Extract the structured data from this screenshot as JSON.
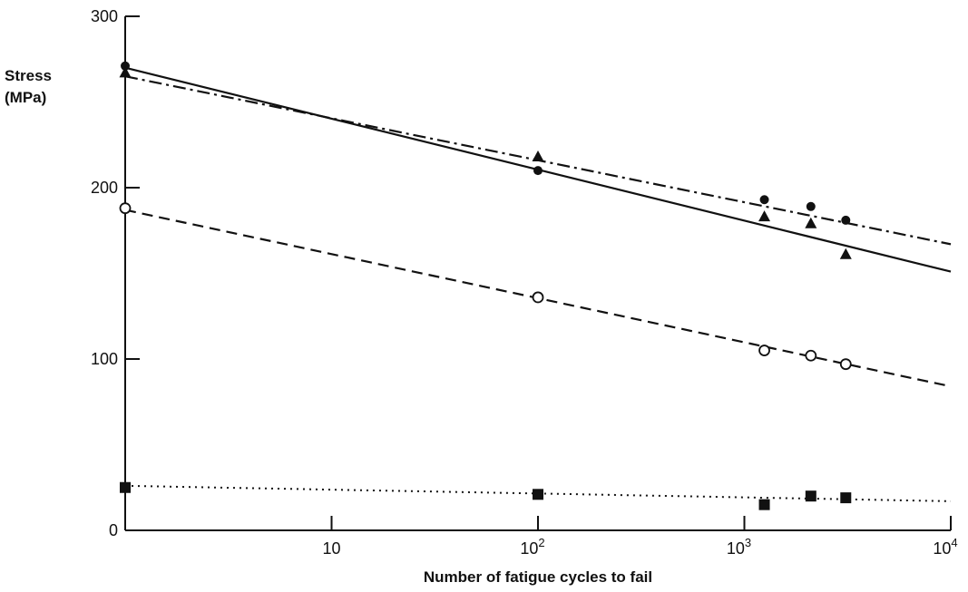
{
  "chart_data": {
    "type": "scatter",
    "title": "",
    "xlabel": "Number of fatigue cycles to fail",
    "ylabel": "Stress (MPa)",
    "ylabel_lines": [
      "Stress",
      "(MPa)"
    ],
    "xscale": "log",
    "xlim": [
      1,
      10000
    ],
    "ylim": [
      0,
      300
    ],
    "yticks": [
      {
        "value": 0,
        "label": "0"
      },
      {
        "value": 100,
        "label": "100"
      },
      {
        "value": 200,
        "label": "200"
      },
      {
        "value": 300,
        "label": "300"
      }
    ],
    "xticks": [
      {
        "value": 10,
        "base": "10",
        "exp": ""
      },
      {
        "value": 100,
        "base": "10",
        "exp": "2"
      },
      {
        "value": 1000,
        "base": "10",
        "exp": "3"
      },
      {
        "value": 10000,
        "base": "10",
        "exp": "4"
      }
    ],
    "grid": false,
    "legend": "none",
    "series": [
      {
        "marker": "filled-circle",
        "line_style": "dash-dot",
        "color": "#111111",
        "points": [
          {
            "x": 1,
            "y": 271
          },
          {
            "x": 100,
            "y": 210
          },
          {
            "x": 1250,
            "y": 193
          },
          {
            "x": 2100,
            "y": 189
          },
          {
            "x": 3100,
            "y": 181
          }
        ]
      },
      {
        "marker": "filled-triangle",
        "line_style": "solid",
        "color": "#111111",
        "points": [
          {
            "x": 1,
            "y": 267
          },
          {
            "x": 100,
            "y": 218
          },
          {
            "x": 1250,
            "y": 183
          },
          {
            "x": 2100,
            "y": 179
          },
          {
            "x": 3100,
            "y": 161
          }
        ]
      },
      {
        "marker": "open-circle",
        "line_style": "dashed",
        "color": "#111111",
        "points": [
          {
            "x": 1,
            "y": 188
          },
          {
            "x": 100,
            "y": 136
          },
          {
            "x": 1250,
            "y": 105
          },
          {
            "x": 2100,
            "y": 102
          },
          {
            "x": 3100,
            "y": 97
          }
        ]
      },
      {
        "marker": "filled-square",
        "line_style": "dotted",
        "color": "#111111",
        "points": [
          {
            "x": 1,
            "y": 25
          },
          {
            "x": 100,
            "y": 21
          },
          {
            "x": 1250,
            "y": 15
          },
          {
            "x": 2100,
            "y": 20
          },
          {
            "x": 3100,
            "y": 19
          }
        ]
      }
    ],
    "fit_lines": [
      {
        "style": "solid",
        "from": {
          "x": 1,
          "y": 270
        },
        "to": {
          "x": 10000,
          "y": 151
        }
      },
      {
        "style": "dash-dot",
        "from": {
          "x": 1,
          "y": 265
        },
        "to": {
          "x": 10000,
          "y": 167
        }
      },
      {
        "style": "dashed",
        "from": {
          "x": 1,
          "y": 187
        },
        "to": {
          "x": 10000,
          "y": 84
        }
      },
      {
        "style": "dotted",
        "from": {
          "x": 1,
          "y": 26
        },
        "to": {
          "x": 10000,
          "y": 17
        }
      }
    ]
  }
}
